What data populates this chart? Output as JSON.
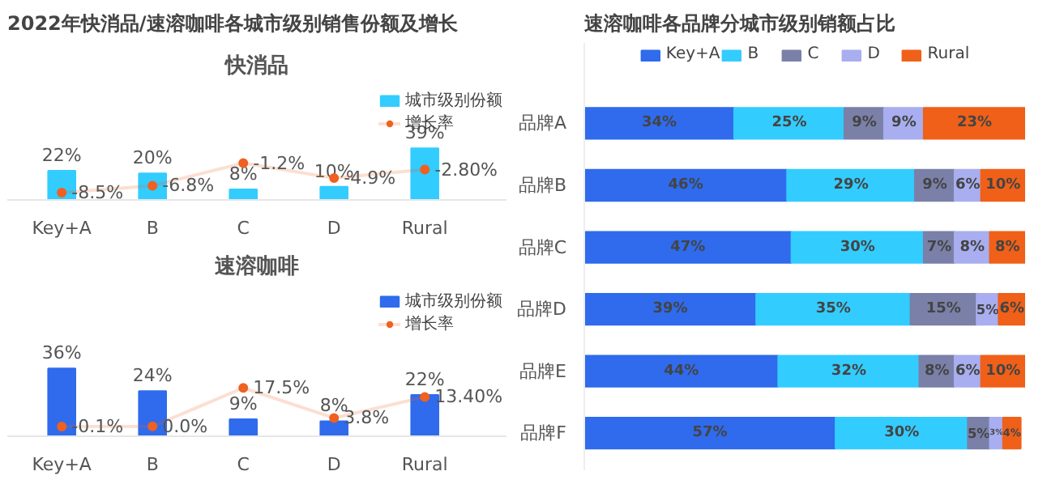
{
  "chart_data": [
    {
      "type": "bar",
      "title": "2022年快消品/速溶咖啡各城市级别销售份额及增长",
      "subtitle": "快消品",
      "categories": [
        "Key+A",
        "B",
        "C",
        "D",
        "Rural"
      ],
      "tick_labels": "x",
      "legend": "top right",
      "series": [
        {
          "name": "城市级别份额",
          "color": "#33ccff",
          "values": [
            22,
            20,
            8,
            10,
            39
          ],
          "value_labels": [
            "22%",
            "20%",
            "8%",
            "10%",
            "39%"
          ]
        },
        {
          "name": "增长率",
          "type": "line",
          "axis": "y2",
          "marker": "circle",
          "color": "#f06020",
          "values": [
            -8.5,
            -6.8,
            -1.2,
            -4.9,
            -2.8
          ],
          "value_labels": [
            "-8.5%",
            "-6.8%",
            "-1.2%",
            "-4.9%",
            "-2.80%"
          ]
        }
      ]
    },
    {
      "type": "bar",
      "title": "速溶咖啡",
      "categories": [
        "Key+A",
        "B",
        "C",
        "D",
        "Rural"
      ],
      "tick_labels": "x",
      "legend": "top right",
      "series": [
        {
          "name": "城市级别份额",
          "color": "#2f6bec",
          "values": [
            36,
            24,
            9,
            8,
            22
          ],
          "value_labels": [
            "36%",
            "24%",
            "9%",
            "8%",
            "22%"
          ]
        },
        {
          "name": "增长率",
          "type": "line",
          "axis": "y2",
          "marker": "circle",
          "color": "#f06020",
          "values": [
            -0.1,
            0.0,
            17.5,
            3.8,
            13.4
          ],
          "value_labels": [
            "-0.1%",
            "0.0%",
            "17.5%",
            "3.8%",
            "13.40%"
          ]
        }
      ]
    },
    {
      "type": "bar",
      "orientation": "horizontal",
      "stacked": true,
      "title": "速溶咖啡各品牌分城市级别销额占比",
      "categories": [
        "品牌A",
        "品牌B",
        "品牌C",
        "品牌D",
        "品牌E",
        "品牌F"
      ],
      "tick_labels": "y",
      "legend": "top",
      "series": [
        {
          "name": "Key+A",
          "color": "#2f6bec",
          "values": [
            34,
            46,
            47,
            39,
            44,
            57
          ],
          "value_labels": [
            "34%",
            "46%",
            "47%",
            "39%",
            "44%",
            "57%"
          ]
        },
        {
          "name": "B",
          "color": "#33ccff",
          "values": [
            25,
            29,
            30,
            35,
            32,
            30
          ],
          "value_labels": [
            "25%",
            "29%",
            "30%",
            "35%",
            "32%",
            "30%"
          ]
        },
        {
          "name": "C",
          "color": "#7a80a8",
          "values": [
            9,
            9,
            7,
            15,
            8,
            5
          ],
          "value_labels": [
            "9%",
            "9%",
            "7%",
            "15%",
            "8%",
            "5%"
          ]
        },
        {
          "name": "D",
          "color": "#a8aef0",
          "values": [
            9,
            6,
            8,
            5,
            6,
            3
          ],
          "value_labels": [
            "9%",
            "6%",
            "8%",
            "5%",
            "6%",
            "3%"
          ]
        },
        {
          "name": "Rural",
          "color": "#f06018",
          "values": [
            23,
            10,
            8,
            6,
            10,
            4
          ],
          "value_labels": [
            "23%",
            "10%",
            "8%",
            "6%",
            "10%",
            "4%"
          ]
        }
      ]
    }
  ]
}
